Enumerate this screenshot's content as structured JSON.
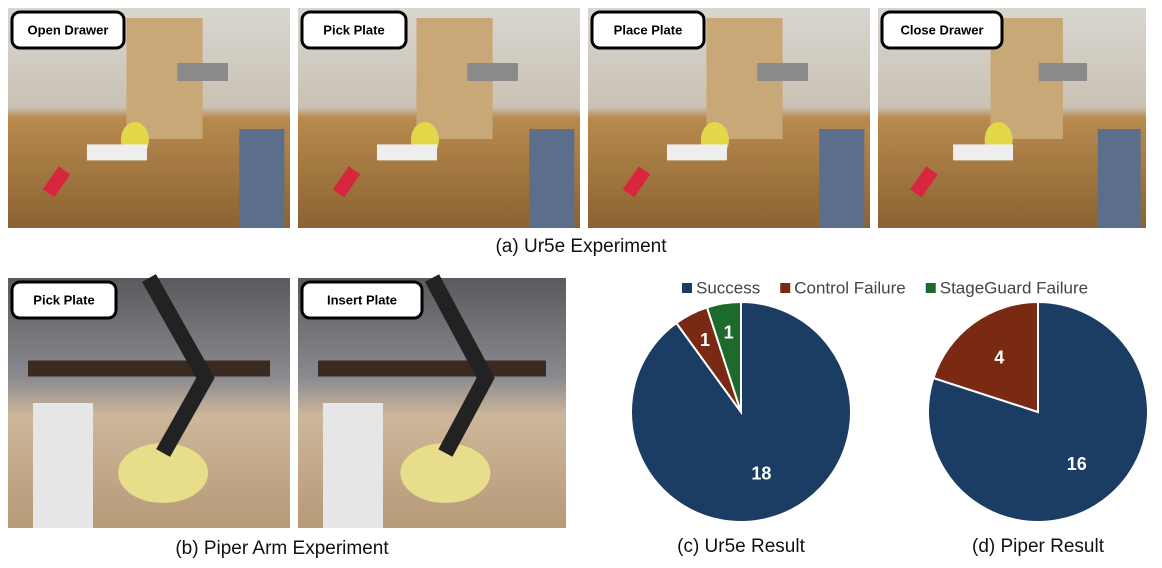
{
  "photos": {
    "ur5e": [
      "Open Drawer",
      "Pick Plate",
      "Place Plate",
      "Close Drawer"
    ],
    "piper": [
      "Pick Plate",
      "Insert Plate"
    ]
  },
  "captions": {
    "ur5e_experiment": "(a) Ur5e Experiment",
    "piper_experiment": "(b) Piper Arm Experiment"
  },
  "chart_data": [
    {
      "type": "pie",
      "title": "(c) Ur5e Result",
      "categories": [
        "Success",
        "Control Failure",
        "StageGuard Failure"
      ],
      "values": [
        18,
        1,
        1
      ],
      "colors": [
        "#1b3c63",
        "#7a2a12",
        "#1d6b2c"
      ],
      "start": "top",
      "direction": "clockwise"
    },
    {
      "type": "pie",
      "title": "(d) Piper Result",
      "categories": [
        "Success",
        "Control Failure"
      ],
      "values": [
        16,
        4
      ],
      "colors": [
        "#1b3c63",
        "#7a2a12"
      ],
      "start": "top",
      "direction": "clockwise"
    }
  ],
  "legend_position": "top"
}
